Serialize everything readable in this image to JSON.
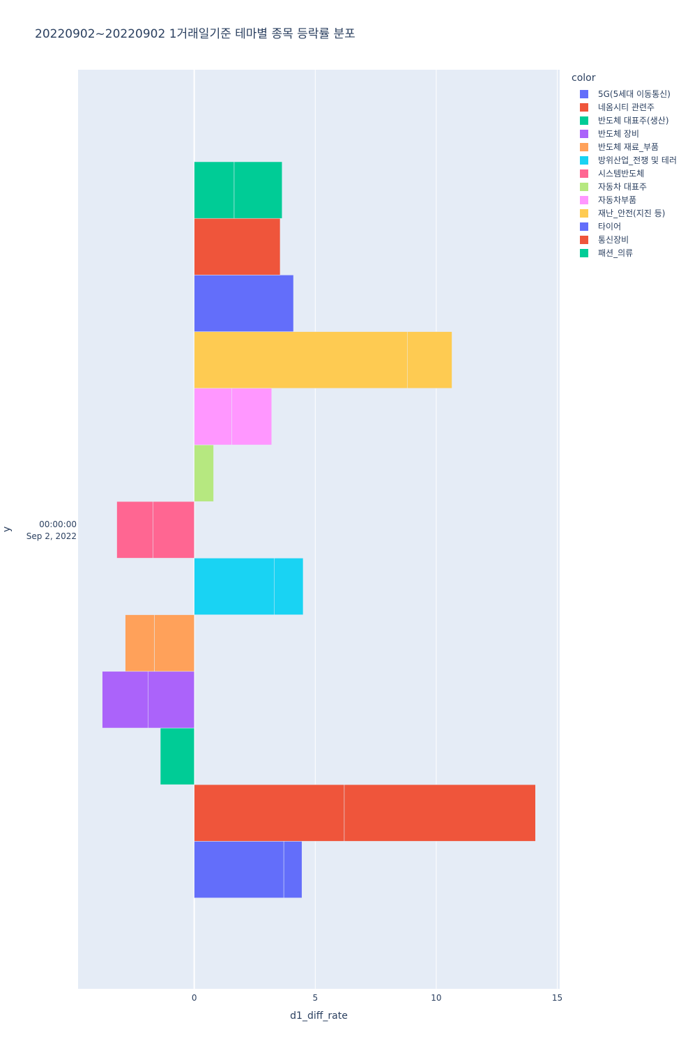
{
  "chart_data": {
    "type": "bar",
    "orientation": "horizontal",
    "barmode": "relative",
    "title": "20220902~20220902 1거래일기준 테마별 종목 등락률 분포",
    "xlabel": "d1_diff_rate",
    "ylabel": "y",
    "xlim": [
      -4.8,
      15.1
    ],
    "x_ticks": [
      0,
      5,
      10,
      15
    ],
    "y_tick_lines": [
      "00:00:00",
      "Sep 2, 2022"
    ],
    "legend_title": "color",
    "legend_position": "top-right",
    "grid": true,
    "series": [
      {
        "name": "5G(5세대 이동통신)",
        "color": "#636efa",
        "segments": [
          3.7,
          0.75
        ]
      },
      {
        "name": "네옴시티 관련주",
        "color": "#EF553B",
        "segments": [
          6.2,
          7.9
        ]
      },
      {
        "name": "반도체 대표주(생산)",
        "color": "#00cc96",
        "segments": [
          -1.4
        ]
      },
      {
        "name": "반도체 장비",
        "color": "#ab63fa",
        "segments": [
          -1.9,
          -1.9
        ]
      },
      {
        "name": "반도체 재료_부품",
        "color": "#FFA15A",
        "segments": [
          -1.65,
          -1.2
        ]
      },
      {
        "name": "방위산업_전쟁 및 테러",
        "color": "#19d3f3",
        "segments": [
          3.3,
          1.2
        ]
      },
      {
        "name": "시스템반도체",
        "color": "#FF6692",
        "segments": [
          -1.7,
          -1.5
        ]
      },
      {
        "name": "자동차 대표주",
        "color": "#B6E880",
        "segments": [
          0.8
        ]
      },
      {
        "name": "자동차부품",
        "color": "#FF97FF",
        "segments": [
          1.55,
          1.65
        ]
      },
      {
        "name": "재난_안전(지진 등)",
        "color": "#FECB52",
        "segments": [
          8.8,
          1.85
        ]
      },
      {
        "name": "타이어",
        "color": "#636efa",
        "segments": [
          4.1
        ]
      },
      {
        "name": "통신장비",
        "color": "#EF553B",
        "segments": [
          3.55
        ]
      },
      {
        "name": "패션_의류",
        "color": "#00cc96",
        "segments": [
          1.65,
          1.98
        ]
      }
    ]
  }
}
